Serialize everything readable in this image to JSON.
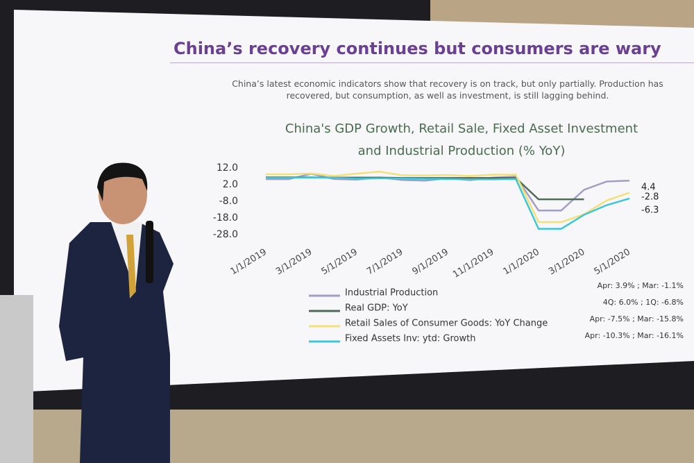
{
  "slide": {
    "heading": "China’s recovery continues but consumers are wary",
    "text": "China’s latest economic indicators show that recovery is on track, but only partially. Production has recovered, but consumption, as well as investment, is still lagging behind."
  },
  "chart_data": {
    "type": "line",
    "title": [
      "China's GDP Growth, Retail Sale, Fixed Asset Investment",
      "and Industrial Production (% YoY)"
    ],
    "categories": [
      "1/1/2019",
      null,
      "3/1/2019",
      null,
      "5/1/2019",
      null,
      "7/1/2019",
      null,
      "9/1/2019",
      null,
      "11/1/2019",
      null,
      "1/1/2020",
      null,
      "3/1/2020",
      null,
      "5/1/2020"
    ],
    "series": [
      {
        "name": "Industrial Production",
        "color": "#a29ec6",
        "note": "Apr: 3.9% ; Mar: -1.1%",
        "values": [
          5.3,
          5.3,
          8.5,
          5.4,
          5.0,
          6.3,
          4.8,
          4.4,
          5.8,
          4.7,
          6.2,
          6.9,
          -13.5,
          -13.5,
          -1.1,
          3.9,
          4.4
        ]
      },
      {
        "name": "Real GDP: YoY",
        "color": "#4f6b57",
        "note": "4Q: 6.0% ; 1Q: -6.8%",
        "values": [
          6.4,
          6.4,
          6.4,
          6.2,
          6.2,
          6.2,
          6.0,
          6.0,
          6.0,
          6.0,
          6.0,
          6.0,
          -6.8,
          -6.8,
          -6.8,
          null,
          null
        ]
      },
      {
        "name": "Retail Sales of Consumer Goods: YoY Change",
        "color": "#f3e07a",
        "note": "Apr: -7.5% ; Mar: -15.8%",
        "values": [
          8.2,
          8.2,
          8.7,
          7.2,
          8.6,
          9.8,
          7.6,
          7.5,
          7.8,
          7.2,
          8.0,
          8.0,
          -20.5,
          -20.5,
          -15.8,
          -7.5,
          -2.8
        ]
      },
      {
        "name": "Fixed Assets Inv: ytd: Growth",
        "color": "#3cc6d6",
        "note": "Apr: -10.3% ; Mar: -16.1%",
        "values": [
          6.1,
          6.1,
          6.3,
          6.1,
          5.6,
          5.8,
          5.7,
          5.5,
          5.4,
          5.2,
          5.2,
          5.4,
          -24.5,
          -24.5,
          -16.1,
          -10.3,
          -6.3
        ]
      }
    ],
    "end_labels": [
      0,
      2,
      3
    ],
    "ylim": [
      12,
      -28
    ],
    "yticks": [
      {
        "value": 12,
        "label": "12.0"
      },
      {
        "value": 2,
        "label": "2.0"
      },
      {
        "value": -8,
        "label": "-8.0"
      },
      {
        "value": -18,
        "label": "-18.0"
      },
      {
        "value": -28,
        "label": "-28.0"
      }
    ],
    "grid": false
  }
}
